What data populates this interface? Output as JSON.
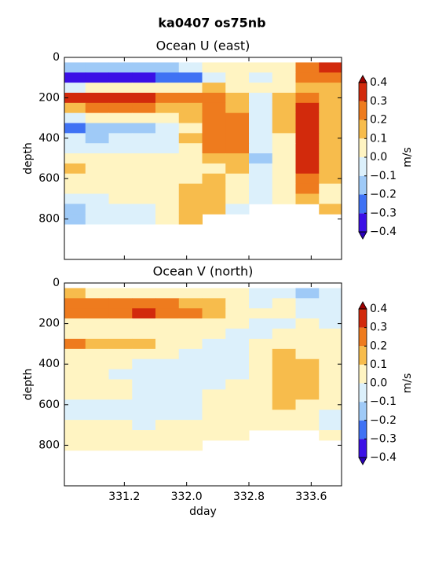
{
  "title": "ka0407 os75nb",
  "chart_data": [
    {
      "type": "contourf",
      "title": "Ocean U (east)",
      "ylabel": "depth",
      "x": [
        330.55,
        330.85,
        331.15,
        331.45,
        331.75,
        332.05,
        332.35,
        332.65,
        332.95,
        333.25,
        333.55,
        333.85
      ],
      "y": [
        50,
        100,
        150,
        200,
        250,
        300,
        350,
        400,
        450,
        500,
        550,
        600,
        650,
        700,
        750,
        800
      ],
      "z": [
        [
          -0.15,
          -0.2,
          -0.2,
          -0.2,
          -0.15,
          -0.1,
          0.0,
          0.05,
          0.0,
          0.05,
          0.25,
          0.3
        ],
        [
          -0.35,
          -0.35,
          -0.35,
          -0.35,
          -0.25,
          -0.25,
          -0.05,
          0.0,
          -0.05,
          0.05,
          0.25,
          0.25
        ],
        [
          -0.05,
          0.05,
          0.0,
          0.0,
          0.0,
          0.05,
          0.1,
          0.05,
          0.0,
          0.05,
          0.15,
          0.1
        ],
        [
          0.3,
          0.35,
          0.35,
          0.35,
          0.25,
          0.2,
          0.2,
          0.1,
          -0.05,
          0.1,
          0.2,
          0.1
        ],
        [
          0.15,
          0.25,
          0.25,
          0.2,
          0.15,
          0.15,
          0.25,
          0.15,
          -0.05,
          0.15,
          0.3,
          0.1
        ],
        [
          -0.05,
          0.0,
          0.0,
          0.0,
          0.0,
          0.1,
          0.25,
          0.2,
          -0.1,
          0.1,
          0.3,
          0.15
        ],
        [
          -0.25,
          -0.15,
          -0.2,
          -0.15,
          -0.1,
          0.05,
          0.2,
          0.2,
          -0.1,
          0.1,
          0.35,
          0.1
        ],
        [
          -0.1,
          -0.15,
          -0.1,
          -0.1,
          -0.05,
          0.1,
          0.25,
          0.25,
          -0.1,
          0.05,
          0.35,
          0.1
        ],
        [
          -0.05,
          -0.05,
          -0.05,
          -0.05,
          -0.05,
          0.05,
          0.2,
          0.2,
          -0.1,
          0.05,
          0.3,
          0.1
        ],
        [
          0.05,
          0.05,
          0.0,
          0.0,
          0.0,
          0.05,
          0.1,
          0.15,
          -0.15,
          0.05,
          0.3,
          0.1
        ],
        [
          0.1,
          0.05,
          0.05,
          0.05,
          0.05,
          0.05,
          0.05,
          0.1,
          -0.1,
          0.05,
          0.3,
          0.1
        ],
        [
          0.05,
          0.05,
          0.05,
          0.05,
          0.05,
          0.05,
          0.15,
          0.05,
          -0.1,
          0.05,
          0.25,
          0.1
        ],
        [
          0.0,
          0.0,
          0.05,
          0.05,
          0.0,
          0.15,
          0.15,
          0.05,
          -0.1,
          0.05,
          0.25,
          0.05
        ],
        [
          -0.05,
          -0.05,
          0.0,
          0.0,
          0.0,
          0.15,
          0.15,
          0.0,
          -0.1,
          0.05,
          0.15,
          0.05
        ],
        [
          -0.15,
          -0.05,
          -0.1,
          -0.05,
          0.0,
          0.15,
          0.15,
          -0.05,
          null,
          null,
          null,
          0.1
        ],
        [
          -0.15,
          -0.1,
          -0.05,
          -0.05,
          0.05,
          0.15,
          null,
          null,
          null,
          null,
          null,
          null
        ]
      ],
      "xlim": [
        330.43,
        333.99
      ],
      "ylim": [
        0,
        1000
      ],
      "y_inverted": true,
      "xticks": [
        331.2,
        332,
        332.8,
        333.6
      ],
      "xticklabels": false,
      "yticks": [
        0,
        200,
        400,
        600,
        800
      ],
      "colorbar": {
        "label": "m/s",
        "levels": [
          -0.4,
          -0.3,
          -0.2,
          -0.1,
          0,
          0.1,
          0.2,
          0.3,
          0.4
        ],
        "colors": [
          "#3b10e6",
          "#3f72f4",
          "#9fcaf7",
          "#dcf0fb",
          "#fff4c2",
          "#f7bc4c",
          "#ee7b1e",
          "#d22a0c"
        ],
        "under": "#2a00b8",
        "over": "#9e0000",
        "ticks": [
          {
            "value": -0.4,
            "label": "−0.4"
          },
          {
            "value": -0.3,
            "label": "−0.3"
          },
          {
            "value": -0.2,
            "label": "−0.2"
          },
          {
            "value": -0.1,
            "label": "−0.1"
          },
          {
            "value": 0,
            "label": "0.0"
          },
          0.1,
          0.2,
          0.3,
          0.4
        ]
      }
    },
    {
      "type": "contourf",
      "title": "Ocean V (north)",
      "ylabel": "depth",
      "xlabel": "dday",
      "x": [
        330.55,
        330.85,
        331.15,
        331.45,
        331.75,
        332.05,
        332.35,
        332.65,
        332.95,
        333.25,
        333.55,
        333.85
      ],
      "y": [
        50,
        100,
        150,
        200,
        250,
        300,
        350,
        400,
        450,
        500,
        550,
        600,
        650,
        700,
        750,
        800
      ],
      "z": [
        [
          0.15,
          0.05,
          0.05,
          0.05,
          0.0,
          0.0,
          0.05,
          0.0,
          -0.05,
          -0.05,
          -0.15,
          -0.1
        ],
        [
          0.2,
          0.2,
          0.2,
          0.2,
          0.2,
          0.15,
          0.1,
          0.05,
          -0.05,
          0.0,
          -0.1,
          -0.1
        ],
        [
          0.25,
          0.25,
          0.2,
          0.3,
          0.25,
          0.2,
          0.1,
          0.05,
          0.0,
          0.0,
          -0.05,
          -0.1
        ],
        [
          0.05,
          0.05,
          0.0,
          0.05,
          0.05,
          0.05,
          0.05,
          0.0,
          -0.05,
          -0.05,
          0.0,
          -0.05
        ],
        [
          0.0,
          0.05,
          0.05,
          0.05,
          0.05,
          0.0,
          0.0,
          -0.05,
          -0.05,
          0.05,
          0.0,
          0.0
        ],
        [
          0.2,
          0.15,
          0.15,
          0.15,
          0.05,
          0.0,
          -0.05,
          -0.05,
          0.05,
          0.05,
          0.05,
          0.0
        ],
        [
          0.05,
          0.05,
          0.05,
          0.0,
          0.0,
          -0.05,
          -0.1,
          -0.1,
          0.05,
          0.1,
          0.05,
          0.0
        ],
        [
          0.0,
          0.0,
          0.0,
          -0.05,
          -0.05,
          -0.05,
          -0.1,
          -0.05,
          0.05,
          0.1,
          0.1,
          0.0
        ],
        [
          0.05,
          0.0,
          -0.05,
          -0.05,
          -0.05,
          -0.05,
          -0.1,
          -0.05,
          0.05,
          0.1,
          0.1,
          0.0
        ],
        [
          0.05,
          0.05,
          0.0,
          -0.05,
          -0.05,
          -0.05,
          -0.05,
          0.0,
          0.05,
          0.15,
          0.1,
          0.05
        ],
        [
          0.0,
          0.0,
          0.0,
          -0.05,
          -0.05,
          -0.05,
          0.0,
          0.0,
          0.05,
          0.15,
          0.1,
          0.05
        ],
        [
          -0.05,
          -0.05,
          -0.05,
          -0.05,
          -0.05,
          -0.05,
          0.0,
          0.0,
          0.05,
          0.1,
          0.05,
          0.0
        ],
        [
          -0.05,
          -0.05,
          -0.05,
          -0.05,
          -0.05,
          -0.05,
          0.0,
          0.0,
          0.0,
          0.05,
          0.0,
          -0.05
        ],
        [
          0.05,
          0.0,
          0.0,
          -0.05,
          0.0,
          0.0,
          0.0,
          0.05,
          0.0,
          0.05,
          0.0,
          -0.05
        ],
        [
          0.05,
          0.05,
          0.05,
          0.05,
          0.05,
          0.05,
          0.0,
          0.0,
          null,
          null,
          null,
          0.0
        ],
        [
          0.05,
          0.05,
          0.05,
          0.05,
          0.0,
          0.05,
          null,
          null,
          null,
          null,
          null,
          null
        ]
      ],
      "xlim": [
        330.43,
        333.99
      ],
      "ylim": [
        0,
        1000
      ],
      "y_inverted": true,
      "xticks": [
        331.2,
        {
          "value": 332,
          "label": "332.0"
        },
        332.8,
        333.6
      ],
      "xticklabels": true,
      "yticks": [
        0,
        200,
        400,
        600,
        800
      ],
      "colorbar": {
        "label": "m/s",
        "levels": [
          -0.4,
          -0.3,
          -0.2,
          -0.1,
          0,
          0.1,
          0.2,
          0.3,
          0.4
        ],
        "colors": [
          "#3b10e6",
          "#3f72f4",
          "#9fcaf7",
          "#dcf0fb",
          "#fff4c2",
          "#f7bc4c",
          "#ee7b1e",
          "#d22a0c"
        ],
        "under": "#2a00b8",
        "over": "#9e0000",
        "ticks": [
          {
            "value": -0.4,
            "label": "−0.4"
          },
          {
            "value": -0.3,
            "label": "−0.3"
          },
          {
            "value": -0.2,
            "label": "−0.2"
          },
          {
            "value": -0.1,
            "label": "−0.1"
          },
          {
            "value": 0,
            "label": "0.0"
          },
          0.1,
          0.2,
          0.3,
          0.4
        ]
      }
    }
  ]
}
